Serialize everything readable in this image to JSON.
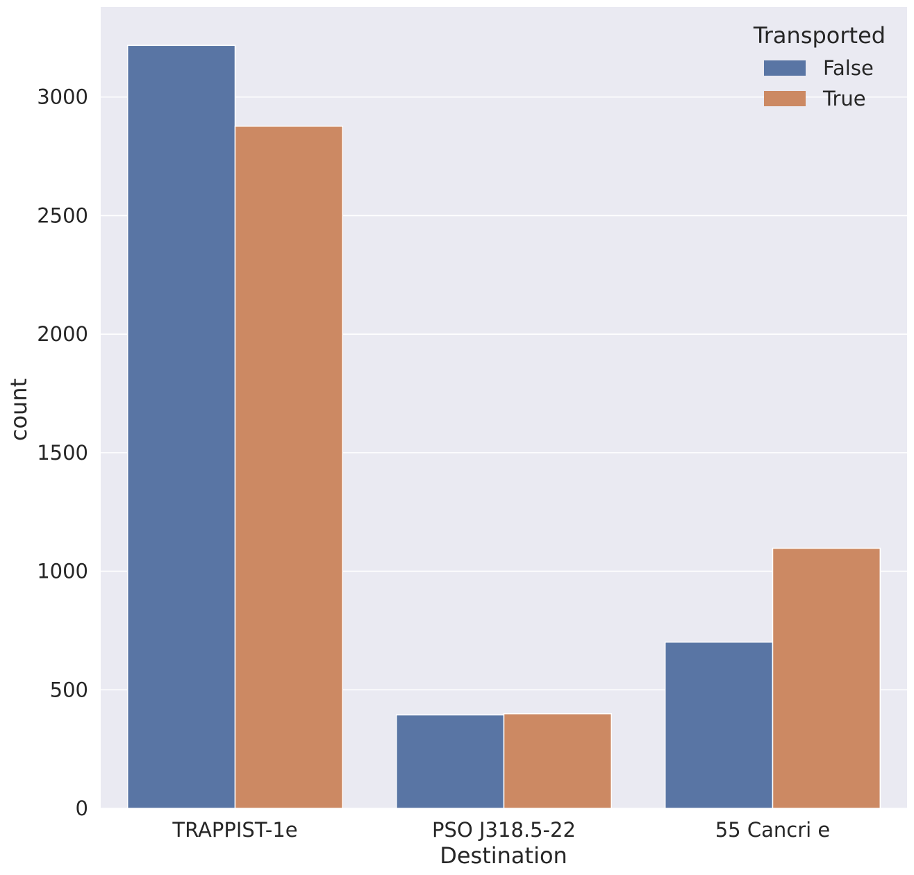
{
  "chart_data": {
    "type": "bar",
    "categories": [
      "TRAPPIST-1e",
      "PSO J318.5-22",
      "55 Cancri e"
    ],
    "series": [
      {
        "name": "False",
        "values": [
          3218,
          394,
          701
        ],
        "color": "#5975a4"
      },
      {
        "name": "True",
        "values": [
          2877,
          399,
          1097
        ],
        "color": "#cc8963"
      }
    ],
    "xlabel": "Destination",
    "ylabel": "count",
    "ylim": [
      0,
      3380
    ],
    "yticks": [
      0,
      500,
      1000,
      1500,
      2000,
      2500,
      3000
    ],
    "legend": {
      "title": "Transported",
      "placement": "top-right"
    },
    "grid": true,
    "background": "#eaeaf2",
    "gridColor": "#ffffff"
  }
}
